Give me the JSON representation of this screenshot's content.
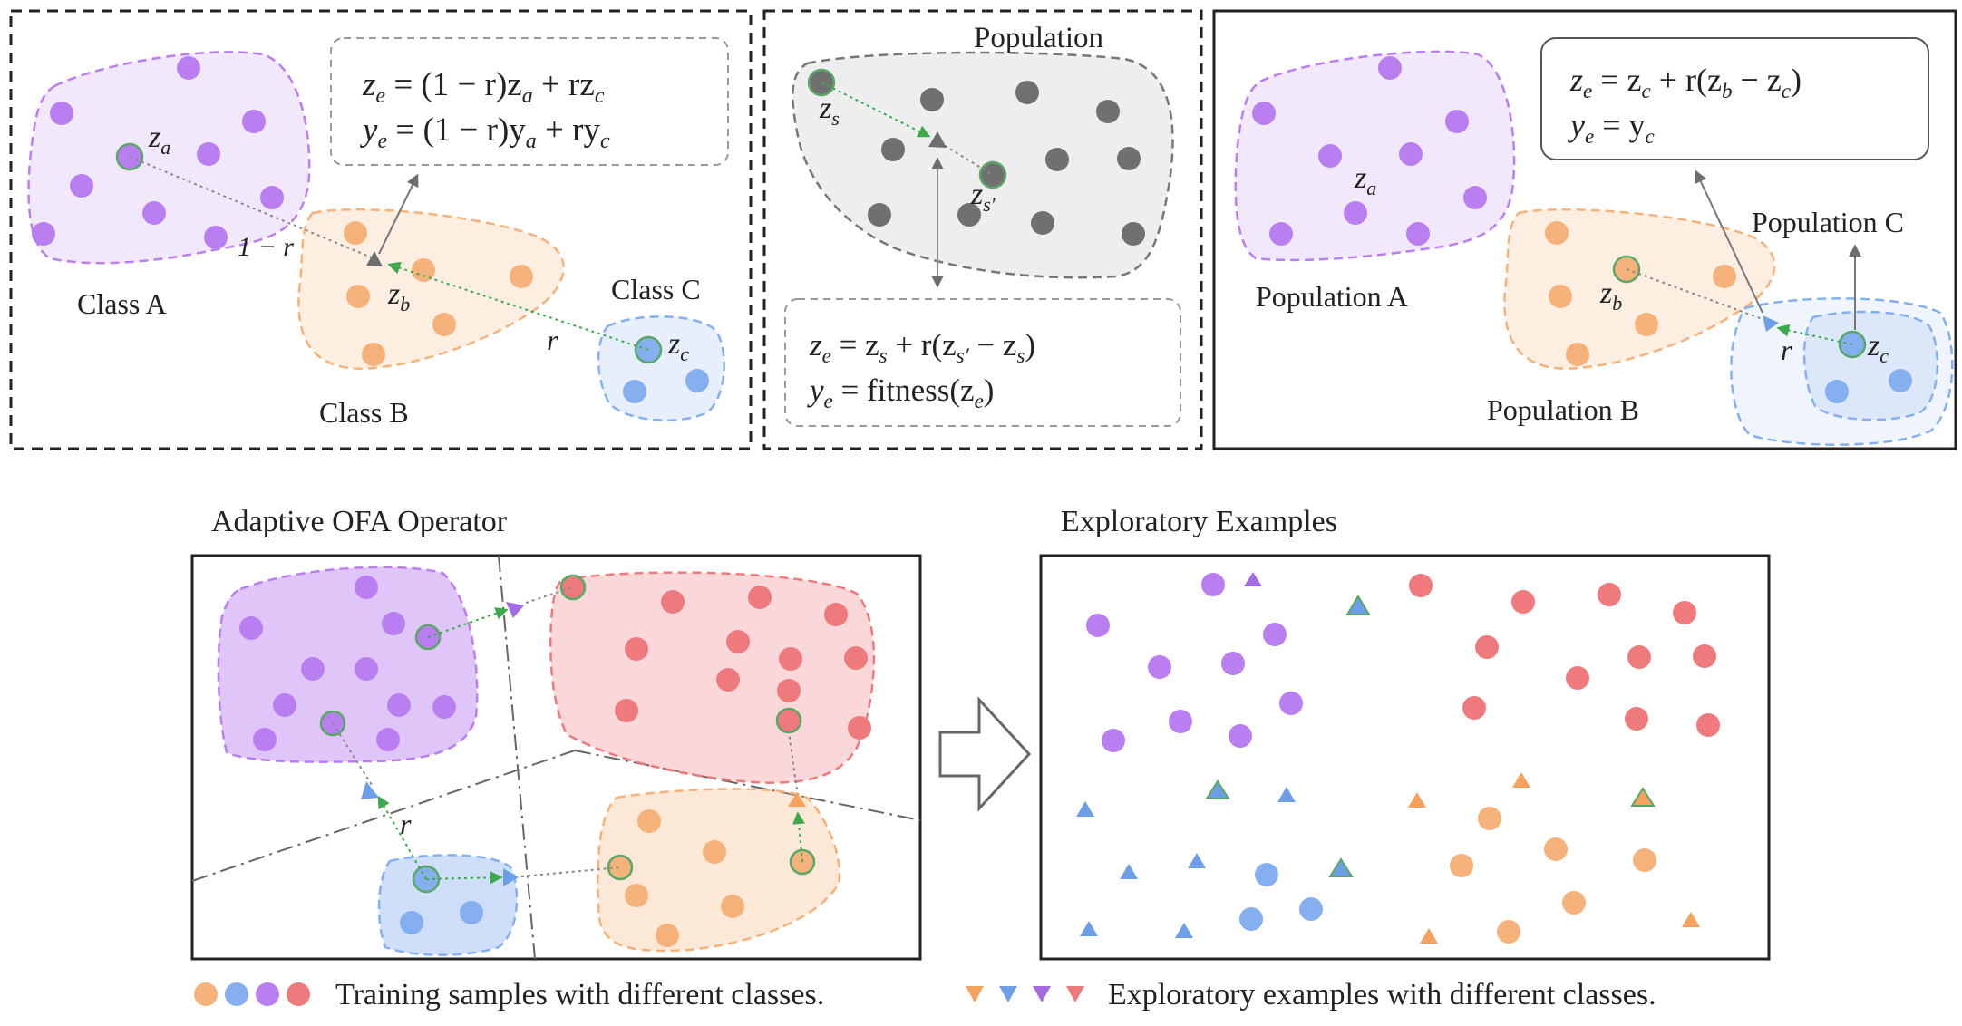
{
  "colors": {
    "purple": "#b97ef0",
    "purple_stroke": "#9a5fe0",
    "orange": "#f5b27b",
    "orange_stroke": "#ea9a55",
    "blue": "#86aff0",
    "blue_stroke": "#5d92e8",
    "red": "#ee7a7e",
    "red_stroke": "#de6167",
    "gray_point": "#707070",
    "green_arrow": "#3ea84f"
  },
  "panel1": {
    "eq1": "zₑ = (1 − r)zₐ + rz𝒸",
    "eq1_parts": {
      "lhs": "z",
      "lhs_sub": "e",
      "rhs": " = (1 − r)z",
      "sub_a": "a",
      "mid": " + rz",
      "sub_c": "c"
    },
    "eq2_parts": {
      "lhs": "y",
      "lhs_sub": "e",
      "rhs": " = (1 − r)y",
      "sub_a": "a",
      "mid": " + ry",
      "sub_c": "c"
    },
    "label_za": "z",
    "label_za_sub": "a",
    "label_zb": "z",
    "label_zb_sub": "b",
    "label_zc": "z",
    "label_zc_sub": "c",
    "one_minus_r": "1 − r",
    "r": "r",
    "class_a": "Class A",
    "class_b": "Class B",
    "class_c": "Class C"
  },
  "panel2": {
    "title": "Population",
    "label_zs": "z",
    "label_zs_sub": "s",
    "label_zs2": "z",
    "label_zs2_sub": "s′",
    "eq1_parts": {
      "lhs": "z",
      "lhs_sub": "e",
      "a": " = z",
      "a_sub": "s",
      "b": " + r(z",
      "b_sub": "s′",
      "c": " − z",
      "c_sub": "s",
      "d": ")"
    },
    "eq2_parts": {
      "lhs": "y",
      "lhs_sub": "e",
      "a": " = fitness(z",
      "a_sub": "e",
      "b": ")"
    }
  },
  "panel3": {
    "eq1_parts": {
      "lhs": "z",
      "lhs_sub": "e",
      "a": " = z",
      "a_sub": "c",
      "b": " + r(z",
      "b_sub": "b",
      "c": " − z",
      "c_sub": "c",
      "d": ")"
    },
    "eq2_parts": {
      "lhs": "y",
      "lhs_sub": "e",
      "a": " = y",
      "a_sub": "c"
    },
    "label_za": "z",
    "label_za_sub": "a",
    "label_zb": "z",
    "label_zb_sub": "b",
    "label_zc": "z",
    "label_zc_sub": "c",
    "r": "r",
    "population_a": "Population A",
    "population_b": "Population B",
    "population_c": "Population C"
  },
  "bottom": {
    "ofa_title": "Adaptive OFA Operator",
    "exploratory_title": "Exploratory Examples",
    "r": "r",
    "legend_training": "Training samples with different classes.",
    "legend_exploratory": "Exploratory examples with different classes."
  }
}
